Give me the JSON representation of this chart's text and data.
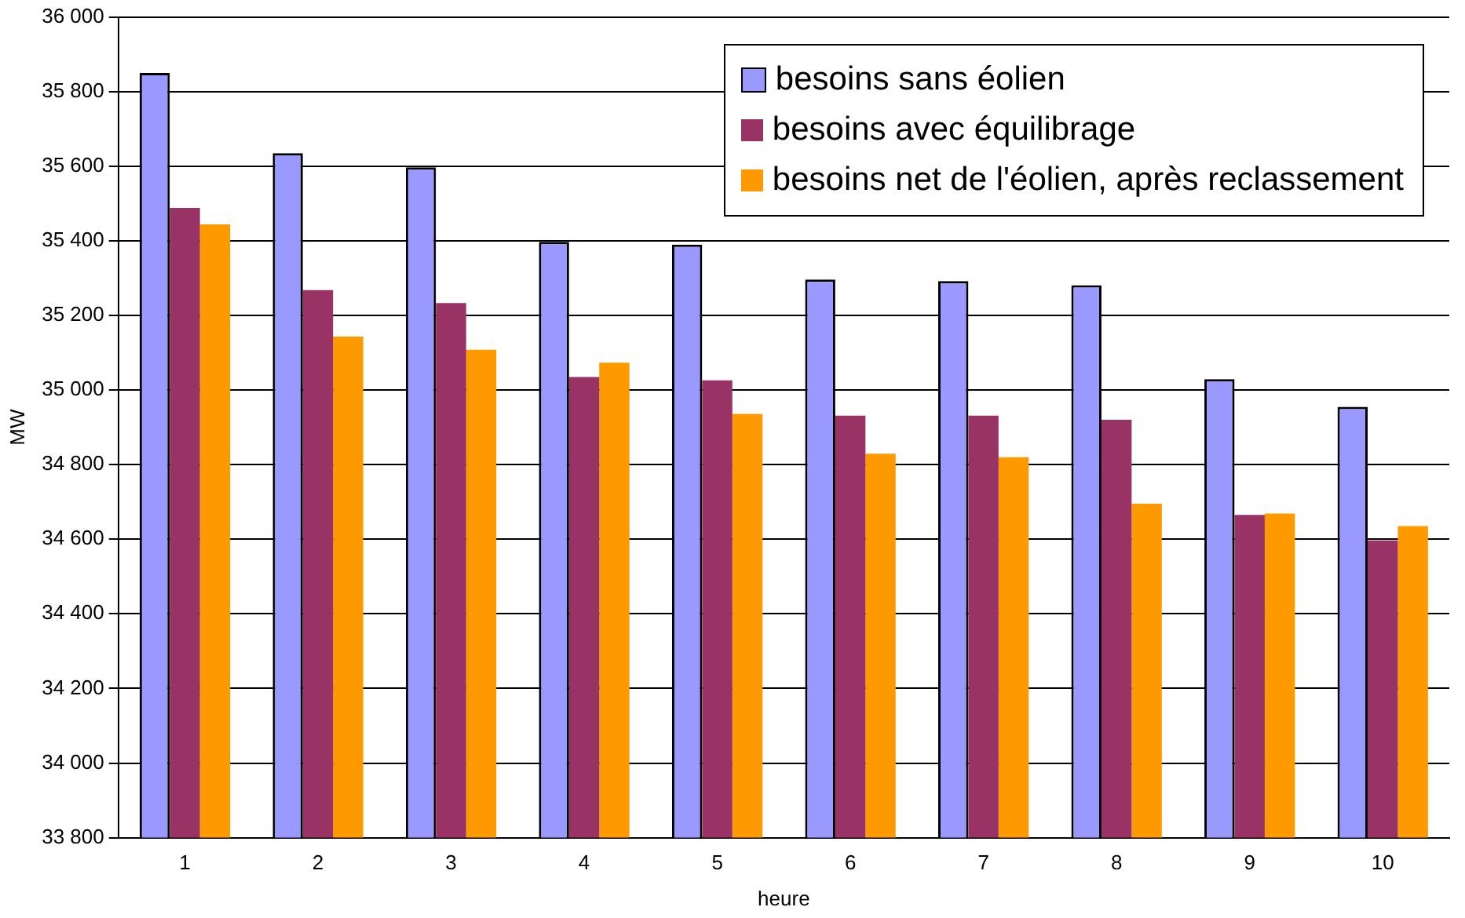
{
  "chart_data": {
    "type": "bar",
    "xlabel": "heure",
    "ylabel": "MW",
    "categories": [
      "1",
      "2",
      "3",
      "4",
      "5",
      "6",
      "7",
      "8",
      "9",
      "10"
    ],
    "series": [
      {
        "name": "besoins sans éolien",
        "color": "#9999ff",
        "values": [
          35850,
          35635,
          35597,
          35397,
          35390,
          35296,
          35292,
          35281,
          35029,
          34955
        ]
      },
      {
        "name": "besoins avec équilibrage",
        "color": "#993366",
        "values": [
          35488,
          35268,
          35233,
          35035,
          35026,
          34931,
          34931,
          34920,
          34665,
          34597
        ]
      },
      {
        "name": "besoins net de l'éolien, après reclassement",
        "color": "#ff9900",
        "values": [
          35444,
          35143,
          35108,
          35073,
          34936,
          34829,
          34820,
          34695,
          34669,
          34635
        ]
      }
    ],
    "ylim": [
      33800,
      36000
    ],
    "yticks": [
      {
        "value": 33800,
        "label": "33 800"
      },
      {
        "value": 34000,
        "label": "34 000"
      },
      {
        "value": 34200,
        "label": "34 200"
      },
      {
        "value": 34400,
        "label": "34 400"
      },
      {
        "value": 34600,
        "label": "34 600"
      },
      {
        "value": 34800,
        "label": "34 800"
      },
      {
        "value": 35000,
        "label": "35 000"
      },
      {
        "value": 35200,
        "label": "35 200"
      },
      {
        "value": 35400,
        "label": "35 400"
      },
      {
        "value": 35600,
        "label": "35 600"
      },
      {
        "value": 35800,
        "label": "35 800"
      },
      {
        "value": 36000,
        "label": "36 000"
      }
    ],
    "grid": "y",
    "legend": "top right"
  }
}
